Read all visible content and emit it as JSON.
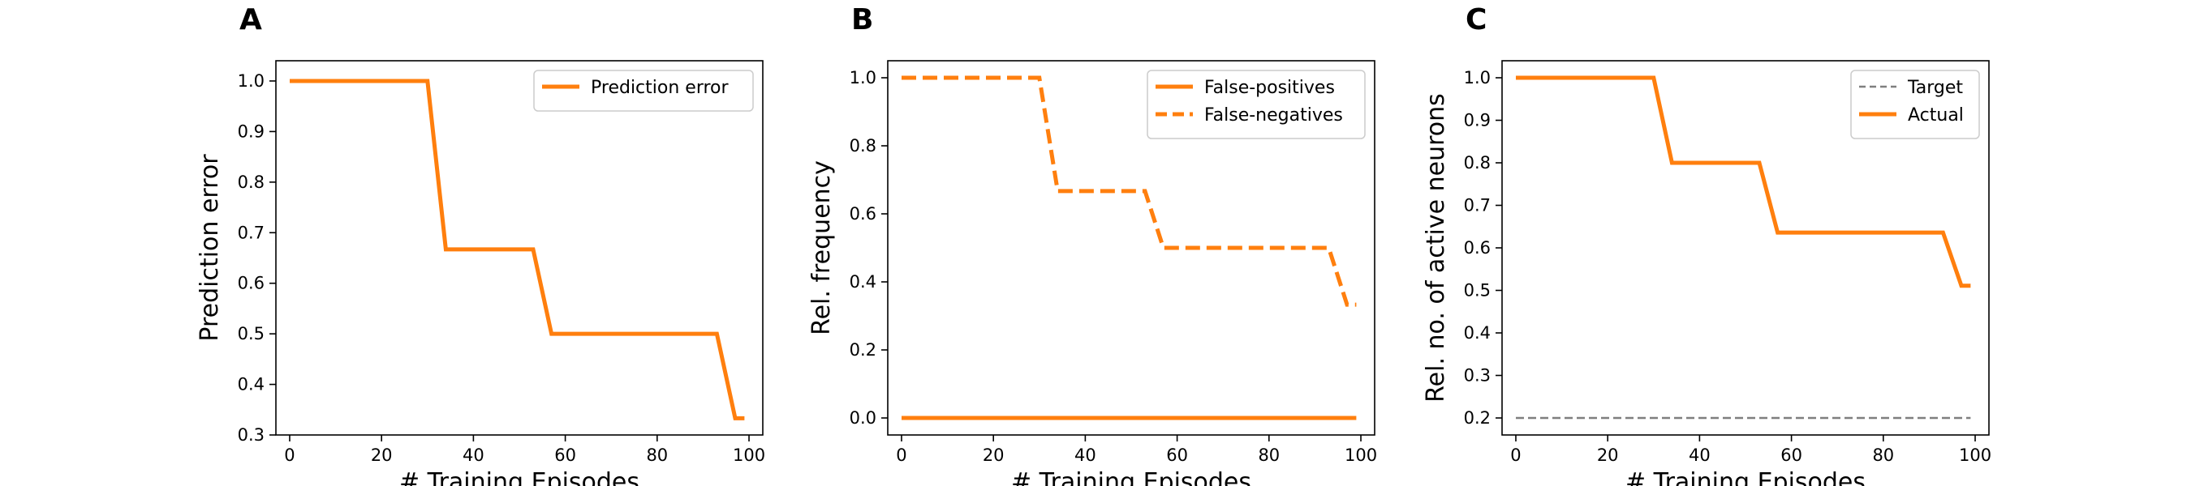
{
  "colors": {
    "orange": "#ff7f0e",
    "gray": "#7f7f7f"
  },
  "chart_data": [
    {
      "type": "line",
      "panel": "A",
      "xlabel": "# Training Episodes",
      "ylabel": "Prediction error",
      "xlim": [
        -3,
        103
      ],
      "ylim": [
        0.3,
        1.04
      ],
      "xticks": [
        0,
        20,
        40,
        60,
        80,
        100
      ],
      "yticks": [
        0.3,
        0.4,
        0.5,
        0.6,
        0.7,
        0.8,
        0.9,
        1.0
      ],
      "ytick_labels": [
        "0.3",
        "0.4",
        "0.5",
        "0.6",
        "0.7",
        "0.8",
        "0.9",
        "1.0"
      ],
      "grid": false,
      "legend_position": "top-right",
      "series": [
        {
          "name": "Prediction error",
          "color": "#ff7f0e",
          "style": "solid",
          "x": [
            0,
            30,
            34,
            53,
            57,
            93,
            97,
            99
          ],
          "y": [
            1.0,
            1.0,
            0.667,
            0.667,
            0.5,
            0.5,
            0.333,
            0.333
          ]
        }
      ]
    },
    {
      "type": "line",
      "panel": "B",
      "xlabel": "# Training Episodes",
      "ylabel": "Rel. frequency",
      "xlim": [
        -3,
        103
      ],
      "ylim": [
        -0.05,
        1.05
      ],
      "xticks": [
        0,
        20,
        40,
        60,
        80,
        100
      ],
      "yticks": [
        0.0,
        0.2,
        0.4,
        0.6,
        0.8,
        1.0
      ],
      "ytick_labels": [
        "0.0",
        "0.2",
        "0.4",
        "0.6",
        "0.8",
        "1.0"
      ],
      "grid": false,
      "legend_position": "top-right",
      "series": [
        {
          "name": "False-positives",
          "color": "#ff7f0e",
          "style": "solid",
          "x": [
            0,
            99
          ],
          "y": [
            0.0,
            0.0
          ]
        },
        {
          "name": "False-negatives",
          "color": "#ff7f0e",
          "style": "dashed",
          "x": [
            0,
            30,
            34,
            53,
            57,
            93,
            97,
            99
          ],
          "y": [
            1.0,
            1.0,
            0.667,
            0.667,
            0.5,
            0.5,
            0.333,
            0.333
          ]
        }
      ]
    },
    {
      "type": "line",
      "panel": "C",
      "xlabel": "# Training Episodes",
      "ylabel": "Rel. no. of active neurons",
      "xlim": [
        -3,
        103
      ],
      "ylim": [
        0.16,
        1.04
      ],
      "xticks": [
        0,
        20,
        40,
        60,
        80,
        100
      ],
      "yticks": [
        0.2,
        0.3,
        0.4,
        0.5,
        0.6,
        0.7,
        0.8,
        0.9,
        1.0
      ],
      "ytick_labels": [
        "0.2",
        "0.3",
        "0.4",
        "0.5",
        "0.6",
        "0.7",
        "0.8",
        "0.9",
        "1.0"
      ],
      "grid": false,
      "legend_position": "top-right",
      "series": [
        {
          "name": "Target",
          "color": "#7f7f7f",
          "style": "dashed-thin",
          "x": [
            0,
            99
          ],
          "y": [
            0.2,
            0.2
          ]
        },
        {
          "name": "Actual",
          "color": "#ff7f0e",
          "style": "solid",
          "x": [
            0,
            30,
            34,
            53,
            57,
            93,
            97,
            99
          ],
          "y": [
            1.0,
            1.0,
            0.8,
            0.8,
            0.636,
            0.636,
            0.511,
            0.511
          ]
        }
      ]
    }
  ]
}
